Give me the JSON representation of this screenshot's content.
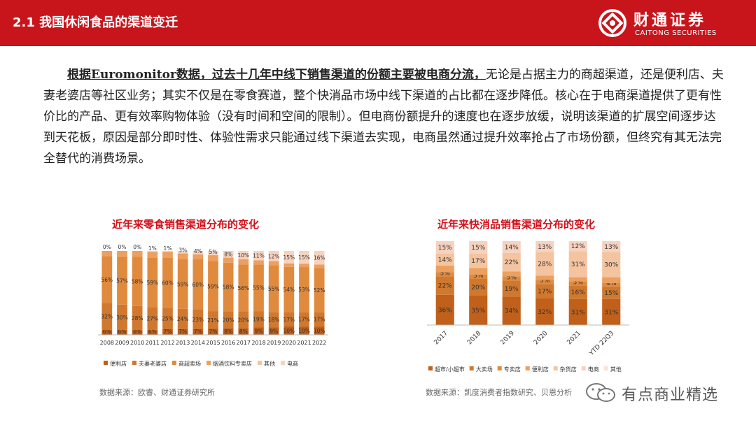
{
  "header": {
    "title": "2.1 我国休闲食品的渠道变迁",
    "logo_cn": "财通证券",
    "logo_en": "CAITONG SECURITIES"
  },
  "body": {
    "lead": "根据Euromonitor数据，过去十几年中线下销售渠道的份额主要被电商分流，",
    "rest": "无论是占据主力的商超渠道，还是便利店、夫妻老婆店等社区业务；其实不仅是在零食赛道，整个快消品市场中线下渠道的占比都在逐步降低。核心在于电商渠道提供了更有性价比的产品、更有效率购物体验（没有时间和空间的限制）。但电商份额提升的速度也在逐步放缓，说明该渠道的扩展空间逐步达到天花板，原因是部分即时性、体验性需求只能通过线下渠道去实现，电商虽然通过提升效率抢占了市场份额，但终究有其无法完全替代的消费场景。"
  },
  "chart_data": [
    {
      "type": "bar",
      "stacked": true,
      "percent": true,
      "title": "近年来零食销售渠道分布的变化",
      "categories": [
        "2008",
        "2009",
        "2010",
        "2011",
        "2012",
        "2013",
        "2014",
        "2015",
        "2016",
        "2017",
        "2018",
        "2019",
        "2020",
        "2021",
        "2022"
      ],
      "series": [
        {
          "name": "便利店",
          "color": "#c0601a",
          "values": [
            6,
            6,
            6,
            6,
            7,
            7,
            7,
            7,
            8,
            8,
            9,
            9,
            10,
            10,
            10
          ]
        },
        {
          "name": "夫妻老婆店",
          "color": "#d0782e",
          "values": [
            32,
            30,
            28,
            27,
            25,
            24,
            23,
            21,
            20,
            20,
            19,
            18,
            17,
            17,
            17
          ]
        },
        {
          "name": "商超卖场",
          "color": "#e08a3e",
          "values": [
            56,
            57,
            58,
            59,
            60,
            59,
            60,
            59,
            58,
            56,
            55,
            55,
            54,
            53,
            52
          ]
        },
        {
          "name": "烟酒饮料专卖店",
          "color": "#ec9f5e",
          "values": [
            6,
            7,
            7,
            7,
            7,
            7,
            6,
            7,
            6,
            6,
            5,
            5,
            4,
            4,
            4
          ]
        },
        {
          "name": "其他",
          "color": "#f4c4a0",
          "values": [
            0,
            0,
            0,
            0,
            0,
            0,
            0,
            0,
            0,
            0,
            0,
            0,
            0,
            0,
            0
          ]
        },
        {
          "name": "电商",
          "color": "#f7d2bf",
          "values": [
            0,
            0,
            0,
            1,
            1,
            3,
            4,
            5,
            8,
            10,
            11,
            12,
            15,
            15,
            16
          ]
        }
      ],
      "labeled_series": [
        "便利店",
        "夫妻老婆店",
        "商超卖场",
        "电商"
      ],
      "label_suffix": "%",
      "legend": "bottom",
      "source": "数据来源：欧睿、财通证券研究所"
    },
    {
      "type": "bar",
      "stacked": true,
      "percent": true,
      "title": "近年来快消品销售渠道分布的变化",
      "categories": [
        "2017",
        "2018",
        "2019",
        "2020",
        "2021",
        "YTD 22Q3"
      ],
      "series": [
        {
          "name": "超市/小超市",
          "color": "#c0601a",
          "values": [
            36,
            35,
            34,
            32,
            31,
            31
          ]
        },
        {
          "name": "大卖场",
          "color": "#d0782e",
          "values": [
            22,
            20,
            19,
            17,
            16,
            15
          ]
        },
        {
          "name": "专卖店",
          "color": "#e08a3e",
          "values": [
            5,
            5,
            5,
            5,
            5,
            4
          ]
        },
        {
          "name": "便利店",
          "color": "#ec9f5e",
          "values": [
            8,
            8,
            6,
            5,
            5,
            7
          ]
        },
        {
          "name": "杂货店",
          "color": "#f4c4a0",
          "values": [
            14,
            17,
            22,
            28,
            31,
            30
          ]
        },
        {
          "name": "电商",
          "color": "#f7d2bf",
          "values": [
            15,
            15,
            14,
            13,
            12,
            13
          ]
        },
        {
          "name": "其他",
          "color": "#f9e3d6",
          "values": [
            0,
            0,
            0,
            0,
            0,
            0
          ]
        }
      ],
      "labeled_series": [
        "超市/小超市",
        "大卖场",
        "专卖店",
        "杂货店",
        "电商"
      ],
      "label_suffix": "%",
      "legend": "bottom",
      "source": "数据来源：凯度消费者指数研究、贝恩分析"
    }
  ],
  "watermark": {
    "text": "有点商业精选"
  }
}
